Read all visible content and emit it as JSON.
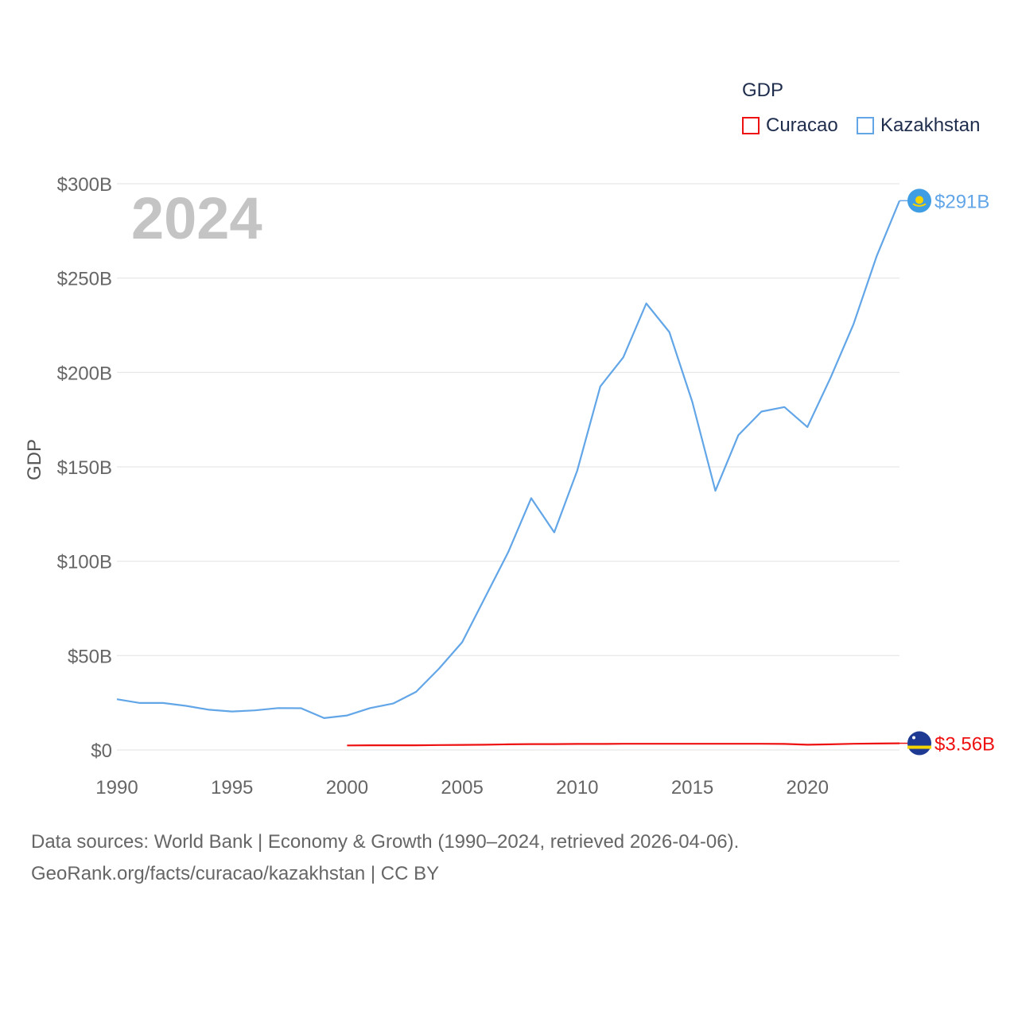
{
  "chart_data": {
    "type": "line",
    "title": "",
    "year_label": "2024",
    "xlabel": "",
    "ylabel": "GDP",
    "xlim": [
      1990,
      2024
    ],
    "ylim": [
      0,
      300
    ],
    "x_ticks": [
      1990,
      1995,
      2000,
      2005,
      2010,
      2015,
      2020
    ],
    "y_ticks": [
      {
        "value": 0,
        "label": "$0"
      },
      {
        "value": 50,
        "label": "$50B"
      },
      {
        "value": 100,
        "label": "$100B"
      },
      {
        "value": 150,
        "label": "$150B"
      },
      {
        "value": 200,
        "label": "$200B"
      },
      {
        "value": 250,
        "label": "$250B"
      },
      {
        "value": 300,
        "label": "$300B"
      }
    ],
    "grid": true,
    "legend": {
      "title": "GDP",
      "position": "top-right"
    },
    "series": [
      {
        "name": "Curacao",
        "color": "#ee1111",
        "end_label": "$3.56B",
        "x": [
          2000,
          2001,
          2002,
          2003,
          2004,
          2005,
          2006,
          2007,
          2008,
          2009,
          2010,
          2011,
          2012,
          2013,
          2014,
          2015,
          2016,
          2017,
          2018,
          2019,
          2020,
          2021,
          2022,
          2023,
          2024
        ],
        "values": [
          2.4,
          2.5,
          2.5,
          2.5,
          2.6,
          2.7,
          2.8,
          3.0,
          3.1,
          3.1,
          3.2,
          3.2,
          3.3,
          3.3,
          3.3,
          3.3,
          3.3,
          3.3,
          3.3,
          3.2,
          2.8,
          3.0,
          3.3,
          3.4,
          3.56
        ]
      },
      {
        "name": "Kazakhstan",
        "color": "#62a6e8",
        "end_label": "$291B",
        "x": [
          1990,
          1991,
          1992,
          1993,
          1994,
          1995,
          1996,
          1997,
          1998,
          1999,
          2000,
          2001,
          2002,
          2003,
          2004,
          2005,
          2006,
          2007,
          2008,
          2009,
          2010,
          2011,
          2012,
          2013,
          2014,
          2015,
          2016,
          2017,
          2018,
          2019,
          2020,
          2021,
          2022,
          2023,
          2024
        ],
        "values": [
          26.9,
          24.9,
          24.9,
          23.4,
          21.3,
          20.4,
          21.0,
          22.2,
          22.1,
          16.9,
          18.3,
          22.2,
          24.6,
          30.8,
          43.2,
          57.1,
          81.0,
          104.8,
          133.4,
          115.3,
          148.0,
          192.6,
          208.0,
          236.6,
          221.4,
          184.4,
          137.3,
          166.8,
          179.3,
          181.7,
          171.1,
          197.1,
          225.5,
          261.4,
          291.0
        ]
      }
    ]
  },
  "footer": {
    "line1": "Data sources: World Bank | Economy & Growth (1990–2024, retrieved 2026-04-06).",
    "line2": "GeoRank.org/facts/curacao/kazakhstan | CC BY"
  }
}
